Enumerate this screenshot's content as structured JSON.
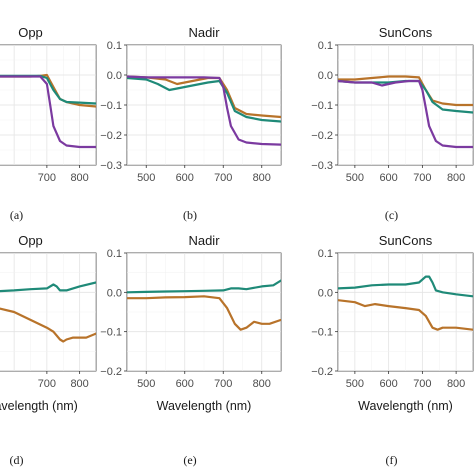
{
  "chart_data": [
    {
      "type": "line",
      "panel": "(a)",
      "title": "Opp",
      "xlabel": "",
      "xlim": [
        450,
        850
      ],
      "xticks": [
        700,
        800
      ],
      "ylim": [
        -0.3,
        0.1
      ],
      "yticks": [],
      "series": [
        {
          "color": "#b8732a",
          "x": [
            450,
            500,
            550,
            600,
            650,
            680,
            700,
            720,
            740,
            760,
            800,
            850
          ],
          "y": [
            0.0,
            -0.005,
            -0.005,
            -0.005,
            -0.005,
            -0.003,
            0.0,
            -0.04,
            -0.08,
            -0.09,
            -0.1,
            -0.105
          ]
        },
        {
          "color": "#1f8a78",
          "x": [
            450,
            500,
            550,
            600,
            650,
            680,
            700,
            720,
            740,
            760,
            800,
            850
          ],
          "y": [
            0.0,
            -0.003,
            -0.003,
            -0.003,
            -0.003,
            -0.003,
            -0.01,
            -0.05,
            -0.08,
            -0.09,
            -0.092,
            -0.095
          ]
        },
        {
          "color": "#7b3aa0",
          "x": [
            450,
            500,
            550,
            600,
            650,
            680,
            700,
            710,
            720,
            740,
            760,
            800,
            850
          ],
          "y": [
            0.0,
            -0.005,
            -0.005,
            -0.005,
            -0.005,
            -0.005,
            -0.03,
            -0.1,
            -0.17,
            -0.22,
            -0.235,
            -0.24,
            -0.24
          ]
        }
      ]
    },
    {
      "type": "line",
      "panel": "(b)",
      "title": "Nadir",
      "xlabel": "",
      "xlim": [
        450,
        850
      ],
      "xticks": [
        500,
        600,
        700,
        800
      ],
      "ylim": [
        -0.3,
        0.1
      ],
      "yticks": [
        0.1,
        0.0,
        -0.1,
        -0.2,
        -0.3
      ],
      "series": [
        {
          "color": "#b8732a",
          "x": [
            450,
            500,
            550,
            580,
            620,
            660,
            690,
            710,
            730,
            760,
            800,
            850
          ],
          "y": [
            -0.005,
            -0.008,
            -0.015,
            -0.03,
            -0.02,
            -0.01,
            -0.01,
            -0.05,
            -0.11,
            -0.13,
            -0.135,
            -0.14
          ]
        },
        {
          "color": "#1f8a78",
          "x": [
            450,
            500,
            530,
            560,
            580,
            620,
            660,
            690,
            710,
            730,
            760,
            800,
            850
          ],
          "y": [
            -0.01,
            -0.015,
            -0.03,
            -0.05,
            -0.045,
            -0.035,
            -0.025,
            -0.02,
            -0.06,
            -0.12,
            -0.14,
            -0.15,
            -0.155
          ]
        },
        {
          "color": "#7b3aa0",
          "x": [
            450,
            500,
            550,
            600,
            650,
            690,
            700,
            710,
            720,
            740,
            760,
            800,
            850
          ],
          "y": [
            -0.005,
            -0.008,
            -0.008,
            -0.008,
            -0.008,
            -0.01,
            -0.04,
            -0.11,
            -0.17,
            -0.215,
            -0.225,
            -0.23,
            -0.232
          ]
        }
      ]
    },
    {
      "type": "line",
      "panel": "(c)",
      "title": "SunCons",
      "xlabel": "",
      "xlim": [
        450,
        850
      ],
      "xticks": [
        500,
        600,
        700,
        800
      ],
      "ylim": [
        -0.3,
        0.1
      ],
      "yticks": [
        0.1,
        0.0,
        -0.1,
        -0.2,
        -0.3
      ],
      "series": [
        {
          "color": "#b8732a",
          "x": [
            450,
            500,
            550,
            600,
            650,
            690,
            710,
            730,
            760,
            800,
            850
          ],
          "y": [
            -0.015,
            -0.015,
            -0.01,
            -0.005,
            -0.005,
            -0.008,
            -0.05,
            -0.085,
            -0.095,
            -0.1,
            -0.1
          ]
        },
        {
          "color": "#1f8a78",
          "x": [
            450,
            500,
            550,
            600,
            650,
            690,
            710,
            730,
            760,
            800,
            850
          ],
          "y": [
            -0.02,
            -0.025,
            -0.025,
            -0.025,
            -0.02,
            -0.02,
            -0.05,
            -0.09,
            -0.115,
            -0.12,
            -0.125
          ]
        },
        {
          "color": "#7b3aa0",
          "x": [
            450,
            500,
            550,
            580,
            620,
            660,
            690,
            700,
            710,
            720,
            740,
            760,
            800,
            850
          ],
          "y": [
            -0.02,
            -0.025,
            -0.025,
            -0.035,
            -0.025,
            -0.02,
            -0.02,
            -0.05,
            -0.11,
            -0.17,
            -0.22,
            -0.235,
            -0.24,
            -0.24
          ]
        }
      ]
    },
    {
      "type": "line",
      "panel": "(d)",
      "title": "Opp",
      "xlabel": "Wavelength (nm)",
      "xlim": [
        450,
        850
      ],
      "xticks": [
        700,
        800
      ],
      "ylim": [
        -0.2,
        0.1
      ],
      "yticks": [],
      "series": [
        {
          "color": "#1f8a78",
          "x": [
            450,
            500,
            550,
            600,
            650,
            700,
            720,
            730,
            740,
            760,
            800,
            850
          ],
          "y": [
            0.005,
            0.003,
            0.003,
            0.005,
            0.008,
            0.01,
            0.02,
            0.015,
            0.005,
            0.005,
            0.015,
            0.025
          ]
        },
        {
          "color": "#b8732a",
          "x": [
            450,
            500,
            550,
            600,
            650,
            700,
            720,
            740,
            750,
            760,
            780,
            800,
            820,
            850
          ],
          "y": [
            -0.01,
            -0.03,
            -0.04,
            -0.05,
            -0.07,
            -0.09,
            -0.1,
            -0.12,
            -0.125,
            -0.12,
            -0.115,
            -0.115,
            -0.115,
            -0.105
          ]
        }
      ]
    },
    {
      "type": "line",
      "panel": "(e)",
      "title": "Nadir",
      "xlabel": "Wavelength (nm)",
      "xlim": [
        450,
        850
      ],
      "xticks": [
        500,
        600,
        700,
        800
      ],
      "ylim": [
        -0.2,
        0.1
      ],
      "yticks": [
        0.1,
        0.0,
        -0.1,
        -0.2
      ],
      "series": [
        {
          "color": "#1f8a78",
          "x": [
            450,
            500,
            550,
            600,
            650,
            700,
            720,
            740,
            760,
            800,
            830,
            850
          ],
          "y": [
            0.0,
            0.001,
            0.002,
            0.003,
            0.004,
            0.005,
            0.01,
            0.01,
            0.008,
            0.015,
            0.018,
            0.03
          ]
        },
        {
          "color": "#b8732a",
          "x": [
            450,
            500,
            550,
            600,
            650,
            690,
            710,
            730,
            745,
            760,
            780,
            800,
            820,
            850
          ],
          "y": [
            -0.015,
            -0.015,
            -0.013,
            -0.012,
            -0.01,
            -0.015,
            -0.04,
            -0.08,
            -0.095,
            -0.09,
            -0.075,
            -0.08,
            -0.08,
            -0.07
          ]
        }
      ]
    },
    {
      "type": "line",
      "panel": "(f)",
      "title": "SunCons",
      "xlabel": "Wavelength (nm)",
      "xlim": [
        450,
        850
      ],
      "xticks": [
        500,
        600,
        700,
        800
      ],
      "ylim": [
        -0.2,
        0.1
      ],
      "yticks": [
        0.1,
        0.0,
        -0.1,
        -0.2
      ],
      "series": [
        {
          "color": "#1f8a78",
          "x": [
            450,
            500,
            550,
            600,
            650,
            690,
            710,
            720,
            730,
            740,
            760,
            800,
            850
          ],
          "y": [
            0.01,
            0.012,
            0.018,
            0.02,
            0.02,
            0.025,
            0.04,
            0.04,
            0.025,
            0.005,
            0.0,
            -0.005,
            -0.01
          ]
        },
        {
          "color": "#b8732a",
          "x": [
            450,
            500,
            530,
            560,
            600,
            650,
            690,
            710,
            730,
            745,
            760,
            800,
            850
          ],
          "y": [
            -0.02,
            -0.025,
            -0.035,
            -0.03,
            -0.035,
            -0.04,
            -0.045,
            -0.06,
            -0.09,
            -0.095,
            -0.09,
            -0.09,
            -0.095
          ]
        }
      ]
    }
  ]
}
